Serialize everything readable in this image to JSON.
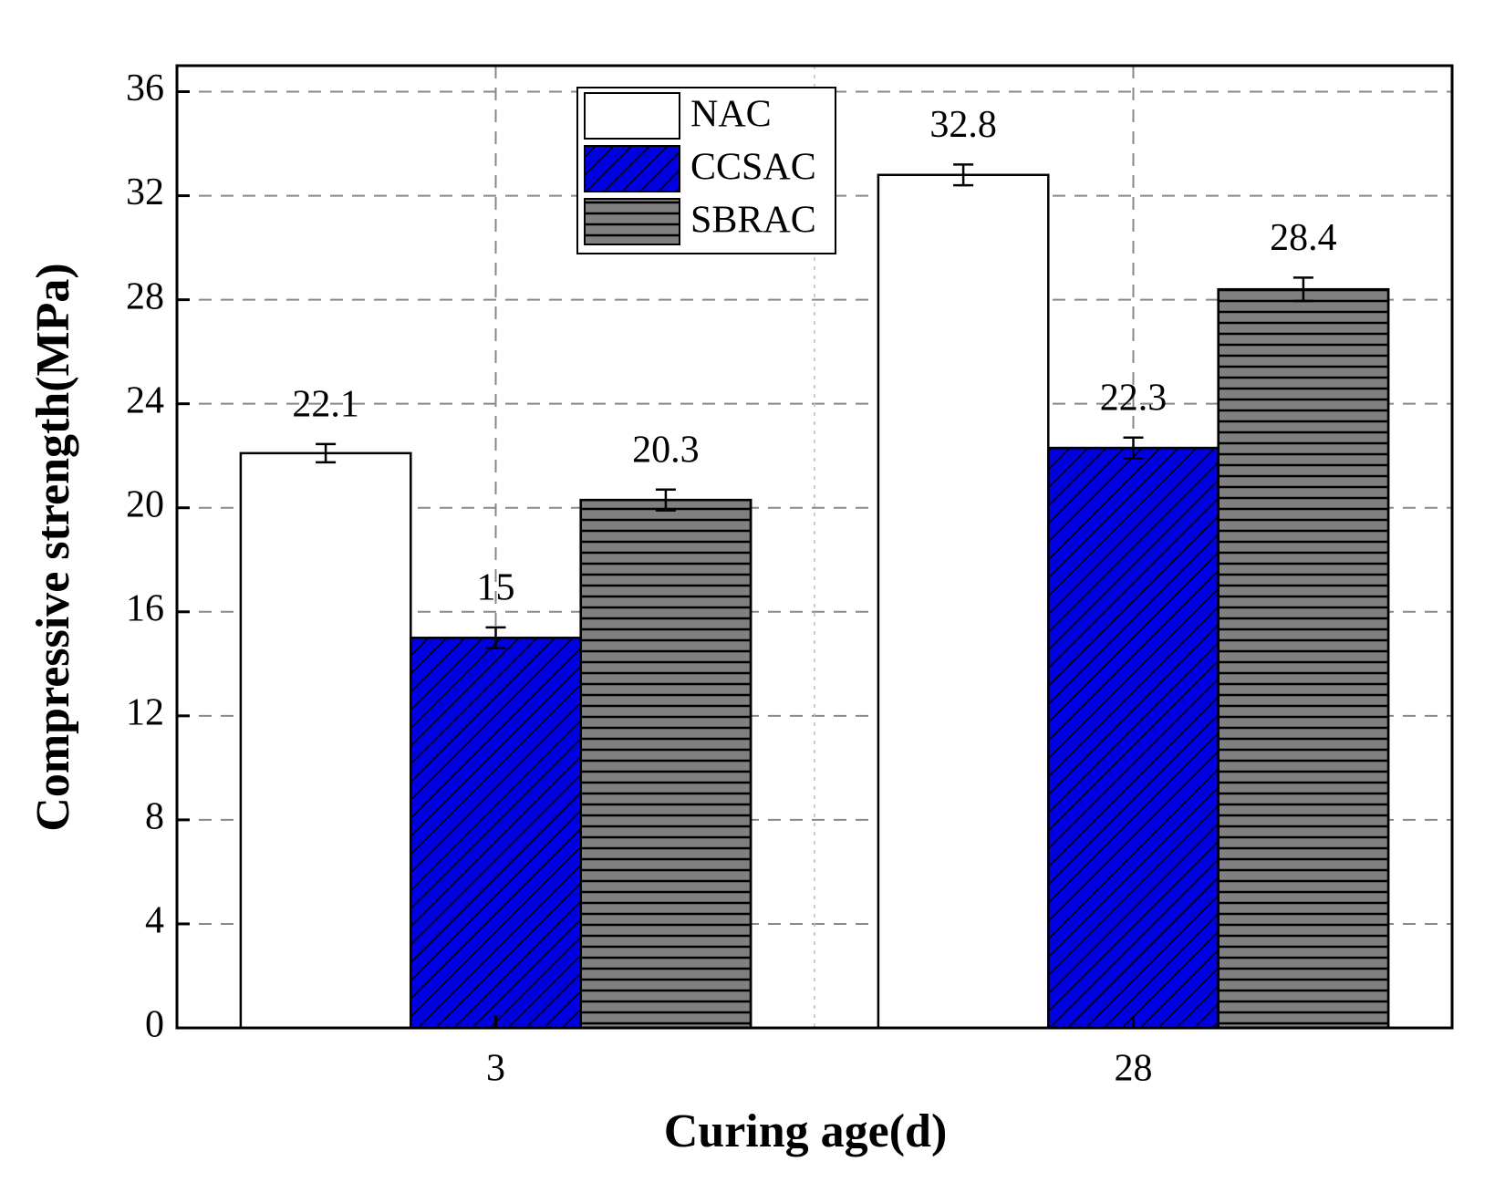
{
  "chart_data": {
    "type": "bar",
    "x_label": "Curing age(d)",
    "y_label": "Compressive strength(MPa)",
    "categories": [
      "3",
      "28"
    ],
    "series": [
      {
        "name": "NAC",
        "color": "#ffffff",
        "hatch": "none",
        "values": [
          22.1,
          32.8
        ],
        "errors": [
          0.35,
          0.4
        ]
      },
      {
        "name": "CCSAC",
        "color": "#0000e0",
        "hatch": "diagonal",
        "values": [
          15,
          22.3
        ],
        "errors": [
          0.4,
          0.4
        ]
      },
      {
        "name": "SBRAC",
        "color": "#808080",
        "hatch": "horizontal",
        "values": [
          20.3,
          28.4
        ],
        "errors": [
          0.4,
          0.45
        ]
      }
    ],
    "ylim": [
      0,
      37
    ],
    "yticks": [
      0,
      4,
      8,
      12,
      16,
      20,
      24,
      28,
      32,
      36
    ],
    "grid": true,
    "legend": "upper-center"
  }
}
